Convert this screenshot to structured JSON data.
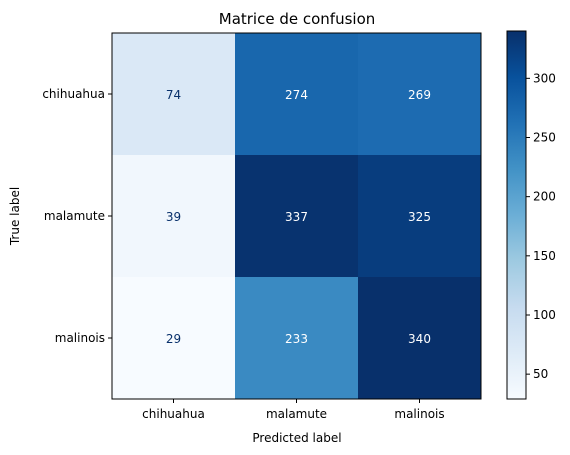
{
  "chart_data": {
    "type": "heatmap",
    "title": "Matrice de confusion",
    "xlabel": "Predicted label",
    "ylabel": "True label",
    "x_categories": [
      "chihuahua",
      "malamute",
      "malinois"
    ],
    "y_categories": [
      "chihuahua",
      "malamute",
      "malinois"
    ],
    "values": [
      [
        74,
        274,
        269
      ],
      [
        39,
        337,
        325
      ],
      [
        29,
        233,
        340
      ]
    ],
    "colormap": "Blues",
    "colorbar": {
      "ticks": [
        50,
        100,
        150,
        200,
        250,
        300
      ],
      "range": [
        29,
        340
      ]
    },
    "text_colors": {
      "light_cell": "#08306b",
      "dark_cell": "#ffffff"
    }
  }
}
